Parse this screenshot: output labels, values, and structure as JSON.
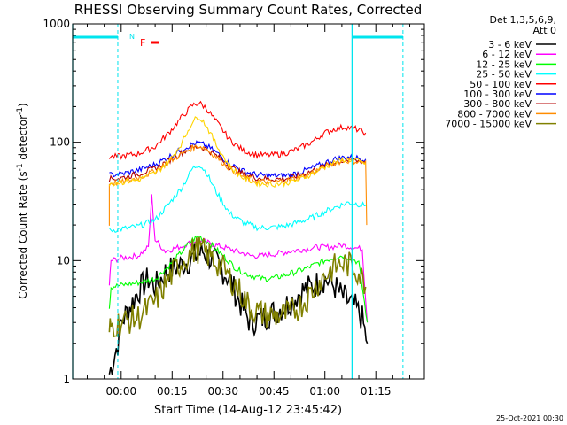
{
  "chart_data": {
    "type": "line",
    "title": "RHESSI Observing Summary Count Rates, Corrected",
    "xlabel": "Start Time (14-Aug-12 23:45:42)",
    "ylabel": "Corrected Count Rate (s",
    "ylabel_sup1": "-1",
    "ylabel_mid": " detector",
    "ylabel_sup2": "-1",
    "ylabel_end": ")",
    "yscale": "log",
    "ylim": [
      1,
      1000
    ],
    "yticks": [
      {
        "value": 1,
        "label": "1"
      },
      {
        "value": 10,
        "label": "10"
      },
      {
        "value": 100,
        "label": "100"
      },
      {
        "value": 1000,
        "label": "1000"
      }
    ],
    "xlim_minutes": [
      -14.3,
      89.3
    ],
    "xticks": [
      {
        "minute": 0,
        "label": "00:00"
      },
      {
        "minute": 15,
        "label": "00:15"
      },
      {
        "minute": 30,
        "label": "00:30"
      },
      {
        "minute": 45,
        "label": "00:45"
      },
      {
        "minute": 60,
        "label": "01:00"
      },
      {
        "minute": 75,
        "label": "01:15"
      }
    ],
    "legend_header": [
      "Det 1,3,5,6,9,",
      "Att 0"
    ],
    "footer_date": "25-Oct-2021 00:30",
    "flags": [
      {
        "label": "N",
        "color": "#00e5ee"
      },
      {
        "label": "F",
        "color": "#ff0000"
      }
    ],
    "series": [
      {
        "name": "3 - 6 keV",
        "color": "#000000",
        "points": [
          [
            -3.5,
            1.1
          ],
          [
            -1,
            2
          ],
          [
            0,
            3
          ],
          [
            5,
            5.5
          ],
          [
            8,
            7
          ],
          [
            10,
            6
          ],
          [
            13,
            8
          ],
          [
            17,
            9
          ],
          [
            20,
            10
          ],
          [
            24,
            12
          ],
          [
            28,
            9.5
          ],
          [
            32,
            7
          ],
          [
            34,
            5
          ],
          [
            38,
            3
          ],
          [
            42,
            3.3
          ],
          [
            46,
            3.8
          ],
          [
            50,
            4.5
          ],
          [
            53,
            5.5
          ],
          [
            56,
            6
          ],
          [
            60,
            7
          ],
          [
            63,
            6
          ],
          [
            65,
            5
          ],
          [
            67,
            4.5
          ],
          [
            69,
            4
          ],
          [
            71,
            3.2
          ],
          [
            72.5,
            2
          ]
        ]
      },
      {
        "name": "6 - 12 keV",
        "color": "#ff00ff",
        "points": [
          [
            -3.5,
            6
          ],
          [
            -3,
            10
          ],
          [
            0,
            10.5
          ],
          [
            5,
            11
          ],
          [
            8,
            13
          ],
          [
            9,
            35
          ],
          [
            10,
            15
          ],
          [
            13,
            12
          ],
          [
            17,
            13
          ],
          [
            20,
            14
          ],
          [
            23,
            15
          ],
          [
            26,
            14
          ],
          [
            30,
            13
          ],
          [
            34,
            12
          ],
          [
            38,
            11
          ],
          [
            42,
            11
          ],
          [
            46,
            11.5
          ],
          [
            50,
            12
          ],
          [
            54,
            12.5
          ],
          [
            58,
            13
          ],
          [
            62,
            13
          ],
          [
            65,
            13.5
          ],
          [
            68,
            13
          ],
          [
            71,
            12.5
          ],
          [
            72.5,
            3
          ]
        ]
      },
      {
        "name": "12 - 25 keV",
        "color": "#00ff00",
        "points": [
          [
            -3.5,
            4
          ],
          [
            -3,
            6
          ],
          [
            0,
            6.2
          ],
          [
            5,
            6.5
          ],
          [
            10,
            7
          ],
          [
            14,
            9
          ],
          [
            18,
            12
          ],
          [
            21,
            15
          ],
          [
            23,
            16
          ],
          [
            26,
            14
          ],
          [
            30,
            11
          ],
          [
            34,
            8.5
          ],
          [
            38,
            7.5
          ],
          [
            42,
            7
          ],
          [
            46,
            7.2
          ],
          [
            50,
            7.8
          ],
          [
            54,
            8.5
          ],
          [
            58,
            9.5
          ],
          [
            62,
            10.5
          ],
          [
            65,
            11
          ],
          [
            68,
            10.5
          ],
          [
            70,
            9.5
          ],
          [
            72.5,
            3
          ]
        ]
      },
      {
        "name": "25 - 50 keV",
        "color": "#00ffff",
        "points": [
          [
            -3.5,
            18
          ],
          [
            0,
            18.5
          ],
          [
            5,
            19.5
          ],
          [
            10,
            22
          ],
          [
            14,
            30
          ],
          [
            18,
            42
          ],
          [
            21,
            60
          ],
          [
            23,
            65
          ],
          [
            25,
            56
          ],
          [
            28,
            38
          ],
          [
            32,
            25
          ],
          [
            36,
            21
          ],
          [
            40,
            19
          ],
          [
            44,
            19
          ],
          [
            48,
            19.5
          ],
          [
            52,
            21
          ],
          [
            56,
            23
          ],
          [
            60,
            26
          ],
          [
            64,
            29
          ],
          [
            67,
            31
          ],
          [
            70,
            30
          ],
          [
            72,
            29
          ]
        ]
      },
      {
        "name": "50 - 100 keV",
        "color": "#ff0000",
        "points": [
          [
            -3.5,
            75
          ],
          [
            0,
            76
          ],
          [
            5,
            80
          ],
          [
            10,
            92
          ],
          [
            14,
            120
          ],
          [
            18,
            165
          ],
          [
            21,
            205
          ],
          [
            23,
            215
          ],
          [
            25,
            195
          ],
          [
            28,
            150
          ],
          [
            32,
            105
          ],
          [
            36,
            85
          ],
          [
            40,
            78
          ],
          [
            44,
            78
          ],
          [
            48,
            80
          ],
          [
            52,
            88
          ],
          [
            56,
            100
          ],
          [
            60,
            120
          ],
          [
            63,
            130
          ],
          [
            66,
            135
          ],
          [
            69,
            130
          ],
          [
            72,
            120
          ]
        ]
      },
      {
        "name": "100 - 300 keV",
        "color": "#0000ff",
        "points": [
          [
            -3.5,
            53
          ],
          [
            0,
            54
          ],
          [
            5,
            58
          ],
          [
            10,
            65
          ],
          [
            14,
            75
          ],
          [
            18,
            88
          ],
          [
            21,
            96
          ],
          [
            23,
            98
          ],
          [
            25,
            94
          ],
          [
            28,
            82
          ],
          [
            32,
            66
          ],
          [
            36,
            57
          ],
          [
            40,
            53
          ],
          [
            44,
            52
          ],
          [
            48,
            52
          ],
          [
            52,
            55
          ],
          [
            56,
            60
          ],
          [
            60,
            67
          ],
          [
            63,
            72
          ],
          [
            66,
            75
          ],
          [
            69,
            74
          ],
          [
            72,
            72
          ]
        ]
      },
      {
        "name": "300 - 800 keV",
        "color": "#b40000",
        "points": [
          [
            -3.5,
            49
          ],
          [
            0,
            50
          ],
          [
            5,
            54
          ],
          [
            10,
            60
          ],
          [
            14,
            70
          ],
          [
            18,
            82
          ],
          [
            21,
            90
          ],
          [
            23,
            92
          ],
          [
            25,
            88
          ],
          [
            28,
            77
          ],
          [
            32,
            62
          ],
          [
            36,
            54
          ],
          [
            40,
            50
          ],
          [
            44,
            49
          ],
          [
            48,
            49
          ],
          [
            52,
            52
          ],
          [
            56,
            57
          ],
          [
            60,
            63
          ],
          [
            63,
            68
          ],
          [
            66,
            70
          ],
          [
            69,
            70
          ],
          [
            72,
            68
          ]
        ]
      },
      {
        "name": "800 - 7000 keV",
        "color": "#ff8c00",
        "points": [
          [
            -3.5,
            20
          ],
          [
            -3.5,
            45
          ],
          [
            0,
            46
          ],
          [
            5,
            50
          ],
          [
            10,
            57
          ],
          [
            14,
            68
          ],
          [
            18,
            80
          ],
          [
            21,
            90
          ],
          [
            23,
            93
          ],
          [
            25,
            88
          ],
          [
            28,
            75
          ],
          [
            32,
            60
          ],
          [
            36,
            51
          ],
          [
            40,
            47
          ],
          [
            44,
            46
          ],
          [
            48,
            47
          ],
          [
            52,
            50
          ],
          [
            56,
            55
          ],
          [
            60,
            62
          ],
          [
            63,
            67
          ],
          [
            66,
            70
          ],
          [
            69,
            69
          ],
          [
            72,
            67
          ],
          [
            72.3,
            20
          ]
        ]
      },
      {
        "name": "7000 - 15000 keV",
        "color": "#808000",
        "points": [
          [
            -3.5,
            2.5
          ],
          [
            -3,
            2.8
          ],
          [
            0,
            3
          ],
          [
            5,
            3.3
          ],
          [
            10,
            4.5
          ],
          [
            14,
            7
          ],
          [
            18,
            10
          ],
          [
            21,
            12
          ],
          [
            23,
            12.5
          ],
          [
            26,
            11
          ],
          [
            30,
            8.5
          ],
          [
            34,
            6
          ],
          [
            38,
            4
          ],
          [
            42,
            3.5
          ],
          [
            46,
            3.4
          ],
          [
            50,
            3.6
          ],
          [
            54,
            4.5
          ],
          [
            58,
            6.5
          ],
          [
            62,
            8.5
          ],
          [
            65,
            9.5
          ],
          [
            68,
            9
          ],
          [
            70,
            8
          ],
          [
            72,
            6
          ]
        ]
      },
      {
        "name": "",
        "color": "#ffd400",
        "points": [
          [
            -3.5,
            45
          ],
          [
            0,
            46
          ],
          [
            5,
            48
          ],
          [
            10,
            55
          ],
          [
            14,
            68
          ],
          [
            18,
            100
          ],
          [
            21,
            150
          ],
          [
            23,
            165
          ],
          [
            25,
            140
          ],
          [
            28,
            95
          ],
          [
            32,
            62
          ],
          [
            36,
            50
          ],
          [
            40,
            45
          ],
          [
            44,
            44
          ],
          [
            48,
            45
          ],
          [
            52,
            48
          ],
          [
            56,
            54
          ],
          [
            60,
            62
          ],
          [
            63,
            68
          ],
          [
            66,
            72
          ],
          [
            69,
            70
          ],
          [
            72,
            66
          ]
        ]
      }
    ]
  }
}
